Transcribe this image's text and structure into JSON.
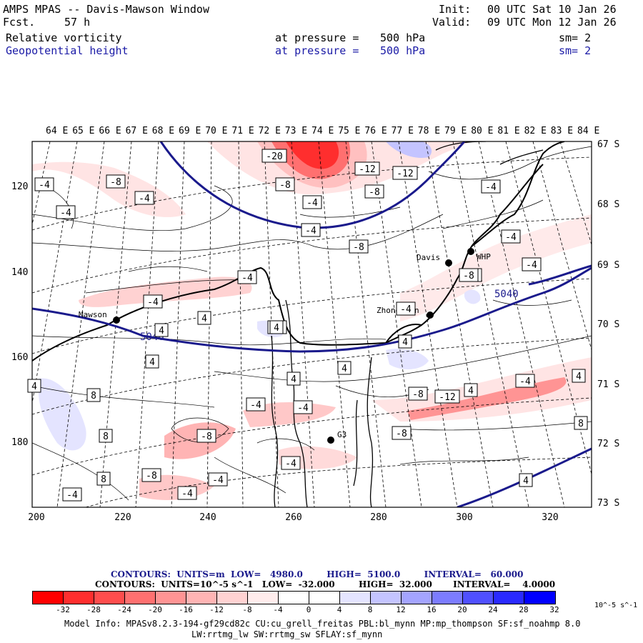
{
  "header": {
    "title": "AMPS MPAS -- Davis-Mawson Window",
    "forecast_label": "Fcst.",
    "forecast_hours": "57 h",
    "init_label": "Init:",
    "init_time": "00 UTC Sat 10 Jan 26",
    "valid_label": "Valid:",
    "valid_time": "09 UTC Mon 12 Jan 26",
    "field1": {
      "name": "Relative vorticity",
      "pressure_label": "at pressure =",
      "pressure": "500 hPa",
      "smooth": "sm= 2"
    },
    "field2": {
      "name": "Geopotential height",
      "pressure_label": "at pressure =",
      "pressure": "500 hPa",
      "smooth": "sm= 2"
    }
  },
  "map": {
    "lon_labels": [
      "64 E",
      "65 E",
      "66 E",
      "67 E",
      "68 E",
      "69 E",
      "70 E",
      "71 E",
      "72 E",
      "73 E",
      "74 E",
      "75 E",
      "76 E",
      "77 E",
      "78 E",
      "79 E",
      "80 E",
      "81 E",
      "82 E",
      "83 E",
      "84 E"
    ],
    "lat_labels": [
      "67 S",
      "68 S",
      "69 S",
      "70 S",
      "71 S",
      "72 S",
      "73 S"
    ],
    "x_ticks": [
      "200",
      "220",
      "240",
      "260",
      "280",
      "300",
      "320"
    ],
    "y_ticks": [
      "120",
      "140",
      "160",
      "180"
    ],
    "stations": [
      {
        "name": "Davis"
      },
      {
        "name": "WHP"
      },
      {
        "name": "Zhongshan"
      },
      {
        "name": "Mawson"
      },
      {
        "name": "G3"
      }
    ],
    "height_labels": [
      "5040",
      "5040"
    ],
    "vort_labels": [
      "-20",
      "-8",
      "-12",
      "-12",
      "-8",
      "-4",
      "-4",
      "-8",
      "-8",
      "-4",
      "-4",
      "-4",
      "-4",
      "-4",
      "-4",
      "-4",
      "-4",
      "4",
      "4",
      "-4",
      "-4",
      "4",
      "4",
      "8",
      "4",
      "8",
      "-8",
      "-4",
      "-4",
      "-8",
      "-8",
      "-12",
      "4",
      "-4",
      "4",
      "8",
      "8",
      "-8",
      "-4",
      "-4",
      "-4",
      "-4",
      "-4",
      "-8",
      "4",
      "4",
      "4",
      "4",
      "4",
      "-4"
    ]
  },
  "info": {
    "line1": "CONTOURS:  UNITS=m  LOW=   4980.0        HIGH=  5100.0        INTERVAL=   60.000",
    "line2": "CONTOURS:  UNITS=10^-5 s^-1   LOW=  -32.000        HIGH=  32.000       INTERVAL=    4.0000"
  },
  "colorbar": {
    "colors": [
      "#ff0000",
      "#ff2e2e",
      "#ff4d4d",
      "#ff7070",
      "#ff9494",
      "#ffb4b4",
      "#ffd2d2",
      "#ffecec",
      "#ffffff",
      "#ffffff",
      "#e4e4ff",
      "#c4c4ff",
      "#a4a4ff",
      "#7c7cff",
      "#5050ff",
      "#2a2aff",
      "#0000ff"
    ],
    "ticks": [
      "-32",
      "-28",
      "-24",
      "-20",
      "-16",
      "-12",
      "-8",
      "-4",
      "0",
      "4",
      "8",
      "12",
      "16",
      "20",
      "24",
      "28",
      "32"
    ],
    "units": "10^-5 s^-1"
  },
  "model_info": {
    "line1": "Model Info: MPASv8.2.3-194-gf29cd82c CU:cu_grell_freitas PBL:bl_mynn MP:mp_thompson SF:sf_noahmp 8.0",
    "line2": "LW:rrtmg_lw SW:rrtmg_sw SFLAY:sf_mynn"
  }
}
